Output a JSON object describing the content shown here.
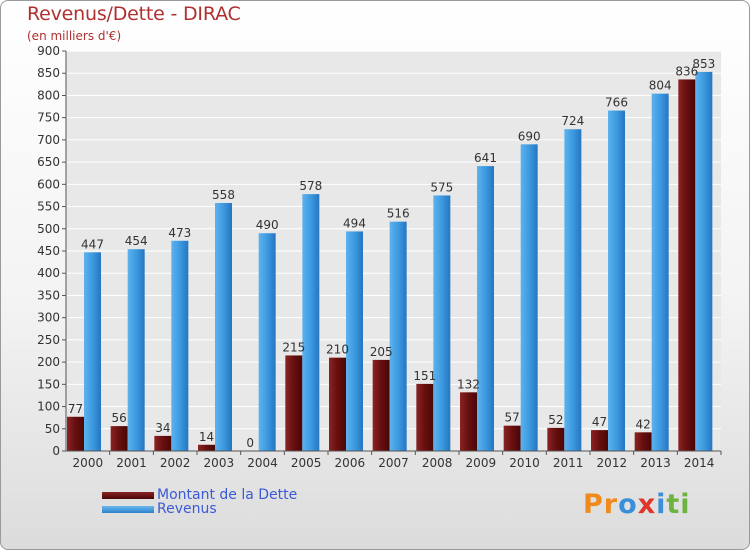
{
  "header": {
    "title": "Revenus/Dette - DIRAC",
    "subtitle": "(en milliers d'€)"
  },
  "logo": {
    "text": "Proxiti",
    "letters": [
      "P",
      "r",
      "o",
      "x",
      "i",
      "t",
      "i"
    ],
    "letter_colors": [
      "#f08a1c",
      "#f08a1c",
      "#3b8fd8",
      "#e0352a",
      "#3b8fd8",
      "#6cb33f",
      "#6cb33f"
    ]
  },
  "colors": {
    "dette": "#7a1e1e",
    "revenus": "#3d9ae0",
    "axis": "#555555",
    "grid": "#ffffff",
    "legend_text": "#3a5ad6"
  },
  "chart_data": {
    "type": "bar",
    "title": "Revenus/Dette - DIRAC",
    "subtitle": "(en milliers d'€)",
    "categories": [
      "2000",
      "2001",
      "2002",
      "2003",
      "2004",
      "2005",
      "2006",
      "2007",
      "2008",
      "2009",
      "2010",
      "2011",
      "2012",
      "2013",
      "2014"
    ],
    "series": [
      {
        "name": "Montant de la Dette",
        "values": [
          77,
          56,
          34,
          14,
          0,
          215,
          210,
          205,
          151,
          132,
          57,
          52,
          47,
          42,
          836
        ]
      },
      {
        "name": "Revenus",
        "values": [
          447,
          454,
          473,
          558,
          490,
          578,
          494,
          516,
          575,
          641,
          690,
          724,
          766,
          804,
          853
        ]
      }
    ],
    "data_labels": {
      "dette": [
        "77",
        "56",
        "34",
        "14",
        "0",
        "215",
        "210",
        "205",
        "151",
        "132",
        "57",
        "52",
        "47",
        "42",
        "836"
      ],
      "revenus": [
        "447",
        "454",
        "473",
        "558",
        "490",
        "578",
        "494",
        "516",
        "575",
        "641",
        "690",
        "724",
        "766",
        "804",
        "853"
      ]
    },
    "y_ticks": [
      "0",
      "50",
      "100",
      "150",
      "200",
      "250",
      "300",
      "350",
      "400",
      "450",
      "500",
      "550",
      "600",
      "650",
      "700",
      "750",
      "800",
      "850",
      "900"
    ],
    "ylim": [
      0,
      900
    ],
    "grid": true,
    "legend_position": "bottom-left"
  },
  "legend": [
    {
      "label": "Montant de la Dette"
    },
    {
      "label": "Revenus"
    }
  ]
}
